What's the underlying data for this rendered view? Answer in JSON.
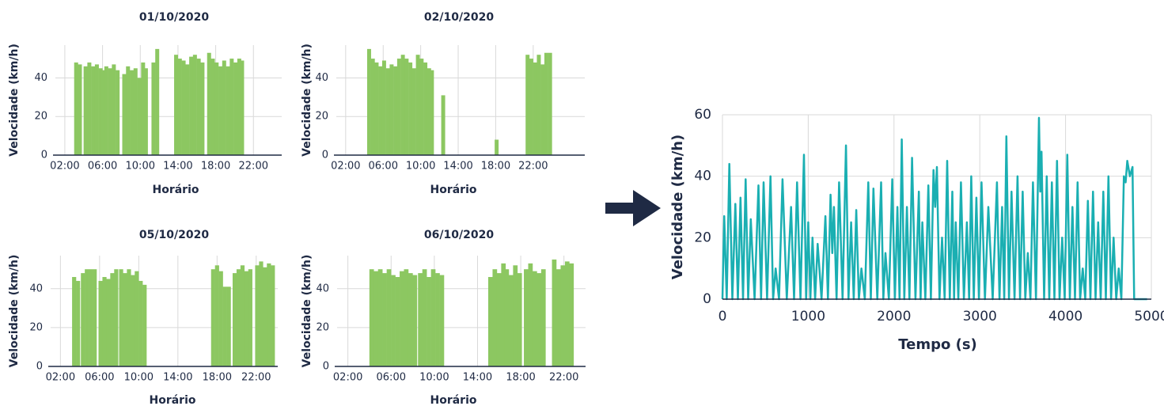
{
  "chart_data": [
    {
      "type": "scatter",
      "title": "01/10/2020",
      "x_label": "Horário",
      "y_label": "Velocidade (km/h)",
      "color": "#8cc761",
      "grid": true,
      "xlim": [
        1,
        25
      ],
      "ylim": [
        0,
        57
      ],
      "xticks": [
        {
          "value": 2,
          "label": "02:00"
        },
        {
          "value": 6,
          "label": "06:00"
        },
        {
          "value": 10,
          "label": "10:00"
        },
        {
          "value": 14,
          "label": "14:00"
        },
        {
          "value": 18,
          "label": "18:00"
        },
        {
          "value": 22,
          "label": "22:00"
        }
      ],
      "yticks": [
        0,
        20,
        40
      ],
      "x": [
        3.2,
        3.6,
        4.2,
        4.6,
        5.0,
        5.4,
        5.8,
        6.0,
        6.4,
        6.8,
        7.2,
        7.6,
        8.3,
        8.7,
        9.1,
        9.5,
        9.9,
        10.3,
        10.6,
        11.4,
        11.8,
        13.8,
        14.2,
        14.6,
        15.0,
        15.4,
        15.8,
        16.2,
        16.6,
        17.3,
        17.7,
        18.1,
        18.5,
        18.9,
        19.3,
        19.7,
        20.1,
        20.5,
        20.8
      ],
      "values": [
        48,
        47,
        46,
        48,
        46,
        47,
        45,
        44,
        46,
        45,
        47,
        44,
        42,
        46,
        44,
        45,
        40,
        48,
        45,
        48,
        55,
        52,
        50,
        49,
        47,
        51,
        52,
        50,
        48,
        53,
        50,
        48,
        46,
        49,
        46,
        50,
        48,
        50,
        49
      ]
    },
    {
      "type": "scatter",
      "title": "02/10/2020",
      "x_label": "Horário",
      "y_label": "Velocidade (km/h)",
      "color": "#8cc761",
      "grid": true,
      "xlim": [
        1,
        27.5
      ],
      "ylim": [
        0,
        57
      ],
      "xticks": [
        {
          "value": 2,
          "label": "02:00"
        },
        {
          "value": 6,
          "label": "06:00"
        },
        {
          "value": 10,
          "label": "10:00"
        },
        {
          "value": 14,
          "label": "14:00"
        },
        {
          "value": 18,
          "label": "18:00"
        },
        {
          "value": 22,
          "label": "22:00"
        }
      ],
      "yticks": [
        0,
        20,
        40
      ],
      "x": [
        4.5,
        4.9,
        5.3,
        5.7,
        6.1,
        6.5,
        6.9,
        7.3,
        7.7,
        8.1,
        8.5,
        8.9,
        9.3,
        9.7,
        10.1,
        10.5,
        10.9,
        11.2,
        12.4,
        18.1,
        21.4,
        21.8,
        22.2,
        22.6,
        23.0,
        23.4,
        23.8
      ],
      "values": [
        55,
        50,
        48,
        46,
        49,
        45,
        47,
        46,
        50,
        52,
        50,
        48,
        45,
        52,
        50,
        48,
        45,
        44,
        31,
        8,
        52,
        50,
        48,
        52,
        47,
        53,
        53
      ]
    },
    {
      "type": "scatter",
      "title": "05/10/2020",
      "x_label": "Horário",
      "y_label": "Velocidade (km/h)",
      "color": "#8cc761",
      "grid": true,
      "xlim": [
        1,
        24.2
      ],
      "ylim": [
        0,
        57
      ],
      "xticks": [
        {
          "value": 2,
          "label": "02:00"
        },
        {
          "value": 6,
          "label": "06:00"
        },
        {
          "value": 10,
          "label": "10:00"
        },
        {
          "value": 14,
          "label": "14:00"
        },
        {
          "value": 18,
          "label": "18:00"
        },
        {
          "value": 22,
          "label": "22:00"
        }
      ],
      "yticks": [
        0,
        20,
        40
      ],
      "x": [
        3.4,
        3.8,
        4.3,
        4.7,
        5.1,
        5.5,
        6.1,
        6.5,
        6.9,
        7.3,
        7.7,
        8.2,
        8.6,
        9.0,
        9.4,
        9.8,
        10.2,
        10.6,
        17.6,
        18.0,
        18.4,
        18.8,
        19.2,
        19.8,
        20.2,
        20.6,
        21.0,
        21.4,
        22.1,
        22.5,
        22.9,
        23.3,
        23.7
      ],
      "values": [
        46,
        44,
        48,
        50,
        50,
        50,
        44,
        46,
        45,
        48,
        50,
        50,
        48,
        50,
        47,
        49,
        44,
        42,
        50,
        52,
        49,
        41,
        41,
        48,
        50,
        52,
        49,
        50,
        52,
        54,
        51,
        53,
        52
      ]
    },
    {
      "type": "scatter",
      "title": "06/10/2020",
      "x_label": "Horário",
      "y_label": "Velocidade (km/h)",
      "color": "#8cc761",
      "grid": true,
      "xlim": [
        1,
        24
      ],
      "ylim": [
        0,
        57
      ],
      "xticks": [
        {
          "value": 2,
          "label": "02:00"
        },
        {
          "value": 6,
          "label": "06:00"
        },
        {
          "value": 10,
          "label": "10:00"
        },
        {
          "value": 14,
          "label": "14:00"
        },
        {
          "value": 18,
          "label": "18:00"
        },
        {
          "value": 22,
          "label": "22:00"
        }
      ],
      "yticks": [
        0,
        20,
        40
      ],
      "x": [
        4.2,
        4.6,
        5.0,
        5.4,
        5.8,
        6.2,
        6.6,
        7.0,
        7.4,
        7.8,
        8.2,
        8.7,
        9.1,
        9.5,
        9.9,
        10.3,
        10.7,
        15.2,
        15.6,
        16.0,
        16.4,
        16.7,
        17.1,
        17.5,
        17.9,
        18.5,
        18.9,
        19.3,
        19.7,
        20.1,
        21.1,
        21.5,
        21.9,
        22.3,
        22.7
      ],
      "values": [
        50,
        49,
        50,
        48,
        50,
        47,
        46,
        49,
        50,
        48,
        47,
        48,
        50,
        46,
        50,
        48,
        47,
        46,
        50,
        48,
        53,
        50,
        47,
        52,
        48,
        50,
        53,
        49,
        48,
        50,
        55,
        50,
        52,
        54,
        53
      ]
    },
    {
      "type": "line",
      "x_label": "Tempo (s)",
      "y_label": "Velocidade (km/h)",
      "color": "#1aafb2",
      "grid": true,
      "xlim": [
        0,
        5000
      ],
      "ylim": [
        0,
        60
      ],
      "xticks": [
        0,
        1000,
        2000,
        3000,
        4000,
        5000
      ],
      "yticks": [
        0,
        20,
        40,
        60
      ],
      "x": [
        0,
        20,
        50,
        80,
        115,
        150,
        180,
        210,
        240,
        270,
        300,
        330,
        375,
        420,
        450,
        480,
        520,
        560,
        590,
        620,
        660,
        700,
        750,
        800,
        835,
        870,
        910,
        950,
        975,
        1000,
        1025,
        1050,
        1080,
        1110,
        1155,
        1200,
        1230,
        1260,
        1280,
        1300,
        1330,
        1360,
        1400,
        1440,
        1470,
        1500,
        1530,
        1560,
        1590,
        1620,
        1660,
        1700,
        1730,
        1760,
        1805,
        1850,
        1875,
        1900,
        1940,
        1980,
        2010,
        2040,
        2065,
        2090,
        2120,
        2150,
        2180,
        2210,
        2250,
        2290,
        2310,
        2330,
        2365,
        2400,
        2430,
        2460,
        2480,
        2500,
        2530,
        2560,
        2590,
        2620,
        2650,
        2680,
        2700,
        2720,
        2750,
        2780,
        2815,
        2850,
        2875,
        2900,
        2930,
        2960,
        2990,
        3020,
        3060,
        3100,
        3150,
        3200,
        3230,
        3260,
        3285,
        3310,
        3340,
        3370,
        3405,
        3440,
        3470,
        3500,
        3530,
        3560,
        3590,
        3620,
        3655,
        3690,
        3705,
        3720,
        3750,
        3780,
        3810,
        3840,
        3870,
        3900,
        3930,
        3960,
        3990,
        4020,
        4050,
        4080,
        4110,
        4140,
        4170,
        4200,
        4230,
        4260,
        4290,
        4320,
        4350,
        4380,
        4410,
        4440,
        4470,
        4500,
        4530,
        4560,
        4590,
        4620,
        4650,
        4680,
        4700,
        4720,
        4750,
        4780,
        4800,
        4950
      ],
      "values": [
        0,
        27,
        0,
        44,
        0,
        31,
        0,
        33,
        0,
        39,
        0,
        26,
        0,
        37,
        0,
        38,
        0,
        40,
        0,
        10,
        0,
        39,
        0,
        30,
        0,
        38,
        0,
        47,
        0,
        25,
        0,
        20,
        0,
        18,
        0,
        27,
        0,
        34,
        15,
        30,
        0,
        38,
        0,
        50,
        0,
        25,
        0,
        29,
        0,
        10,
        0,
        38,
        0,
        36,
        0,
        38,
        0,
        15,
        0,
        39,
        0,
        30,
        0,
        52,
        0,
        30,
        0,
        46,
        0,
        35,
        0,
        25,
        0,
        37,
        0,
        42,
        30,
        43,
        0,
        20,
        0,
        45,
        0,
        35,
        0,
        25,
        0,
        38,
        0,
        25,
        0,
        40,
        0,
        33,
        0,
        38,
        0,
        30,
        0,
        38,
        0,
        30,
        0,
        53,
        0,
        35,
        0,
        40,
        0,
        35,
        0,
        15,
        0,
        38,
        0,
        59,
        35,
        48,
        0,
        40,
        0,
        38,
        0,
        45,
        0,
        20,
        0,
        47,
        0,
        30,
        0,
        38,
        0,
        10,
        0,
        32,
        0,
        35,
        0,
        25,
        0,
        35,
        0,
        40,
        0,
        20,
        0,
        10,
        0,
        40,
        38,
        45,
        40,
        43,
        0,
        0
      ]
    }
  ]
}
